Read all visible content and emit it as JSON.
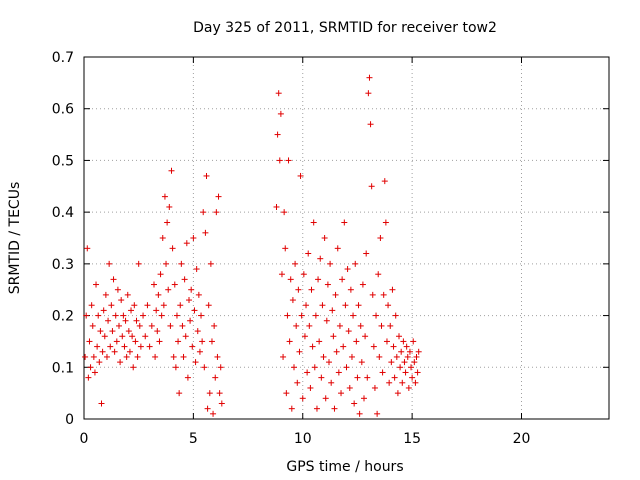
{
  "chart_data": {
    "type": "scatter",
    "title": "Day 325 of 2011, SRMTID for receiver tow2",
    "xlabel": "GPS time / hours",
    "ylabel": "SRMTID / TECUs",
    "xlim": [
      0,
      24
    ],
    "ylim": [
      0,
      0.7
    ],
    "xticks": [
      "0",
      "5",
      "10",
      "15",
      "20"
    ],
    "yticks": [
      "0",
      "0.1",
      "0.2",
      "0.3",
      "0.4",
      "0.5",
      "0.6",
      "0.7"
    ],
    "grid": true,
    "marker": "+",
    "color": "#e00000",
    "series": [
      {
        "name": "tow2",
        "points": [
          [
            0.05,
            0.12
          ],
          [
            0.1,
            0.2
          ],
          [
            0.15,
            0.33
          ],
          [
            0.2,
            0.08
          ],
          [
            0.25,
            0.15
          ],
          [
            0.3,
            0.1
          ],
          [
            0.35,
            0.22
          ],
          [
            0.4,
            0.18
          ],
          [
            0.45,
            0.12
          ],
          [
            0.5,
            0.09
          ],
          [
            0.55,
            0.26
          ],
          [
            0.6,
            0.14
          ],
          [
            0.65,
            0.2
          ],
          [
            0.7,
            0.11
          ],
          [
            0.75,
            0.17
          ],
          [
            0.8,
            0.03
          ],
          [
            0.85,
            0.13
          ],
          [
            0.9,
            0.21
          ],
          [
            0.95,
            0.16
          ],
          [
            1.0,
            0.24
          ],
          [
            1.05,
            0.12
          ],
          [
            1.1,
            0.19
          ],
          [
            1.15,
            0.3
          ],
          [
            1.2,
            0.14
          ],
          [
            1.25,
            0.22
          ],
          [
            1.3,
            0.17
          ],
          [
            1.35,
            0.27
          ],
          [
            1.4,
            0.13
          ],
          [
            1.45,
            0.2
          ],
          [
            1.5,
            0.15
          ],
          [
            1.55,
            0.25
          ],
          [
            1.6,
            0.18
          ],
          [
            1.65,
            0.11
          ],
          [
            1.7,
            0.23
          ],
          [
            1.75,
            0.16
          ],
          [
            1.8,
            0.2
          ],
          [
            1.85,
            0.14
          ],
          [
            1.9,
            0.19
          ],
          [
            1.95,
            0.12
          ],
          [
            2.0,
            0.24
          ],
          [
            2.05,
            0.17
          ],
          [
            2.1,
            0.13
          ],
          [
            2.15,
            0.21
          ],
          [
            2.2,
            0.16
          ],
          [
            2.25,
            0.1
          ],
          [
            2.3,
            0.22
          ],
          [
            2.35,
            0.15
          ],
          [
            2.4,
            0.19
          ],
          [
            2.45,
            0.12
          ],
          [
            2.5,
            0.3
          ],
          [
            2.55,
            0.18
          ],
          [
            2.6,
            0.14
          ],
          [
            2.7,
            0.2
          ],
          [
            2.8,
            0.16
          ],
          [
            2.9,
            0.22
          ],
          [
            3.0,
            0.14
          ],
          [
            3.1,
            0.18
          ],
          [
            3.2,
            0.26
          ],
          [
            3.25,
            0.12
          ],
          [
            3.3,
            0.21
          ],
          [
            3.35,
            0.17
          ],
          [
            3.4,
            0.24
          ],
          [
            3.45,
            0.15
          ],
          [
            3.5,
            0.28
          ],
          [
            3.55,
            0.2
          ],
          [
            3.6,
            0.35
          ],
          [
            3.65,
            0.22
          ],
          [
            3.7,
            0.43
          ],
          [
            3.75,
            0.3
          ],
          [
            3.8,
            0.38
          ],
          [
            3.85,
            0.25
          ],
          [
            3.9,
            0.41
          ],
          [
            3.95,
            0.18
          ],
          [
            4.0,
            0.48
          ],
          [
            4.05,
            0.33
          ],
          [
            4.1,
            0.12
          ],
          [
            4.15,
            0.26
          ],
          [
            4.2,
            0.1
          ],
          [
            4.25,
            0.2
          ],
          [
            4.3,
            0.15
          ],
          [
            4.35,
            0.05
          ],
          [
            4.4,
            0.22
          ],
          [
            4.45,
            0.3
          ],
          [
            4.5,
            0.18
          ],
          [
            4.55,
            0.12
          ],
          [
            4.6,
            0.27
          ],
          [
            4.65,
            0.16
          ],
          [
            4.7,
            0.34
          ],
          [
            4.75,
            0.08
          ],
          [
            4.8,
            0.23
          ],
          [
            4.85,
            0.19
          ],
          [
            4.9,
            0.25
          ],
          [
            4.95,
            0.14
          ],
          [
            5.0,
            0.35
          ],
          [
            5.05,
            0.21
          ],
          [
            5.1,
            0.11
          ],
          [
            5.15,
            0.29
          ],
          [
            5.2,
            0.17
          ],
          [
            5.25,
            0.24
          ],
          [
            5.3,
            0.13
          ],
          [
            5.35,
            0.2
          ],
          [
            5.4,
            0.15
          ],
          [
            5.45,
            0.4
          ],
          [
            5.5,
            0.1
          ],
          [
            5.55,
            0.36
          ],
          [
            5.6,
            0.47
          ],
          [
            5.65,
            0.02
          ],
          [
            5.7,
            0.22
          ],
          [
            5.75,
            0.05
          ],
          [
            5.8,
            0.3
          ],
          [
            5.85,
            0.15
          ],
          [
            5.9,
            0.01
          ],
          [
            5.95,
            0.18
          ],
          [
            6.0,
            0.08
          ],
          [
            6.05,
            0.4
          ],
          [
            6.1,
            0.12
          ],
          [
            6.15,
            0.43
          ],
          [
            6.2,
            0.05
          ],
          [
            6.25,
            0.1
          ],
          [
            6.3,
            0.03
          ],
          [
            8.8,
            0.41
          ],
          [
            8.85,
            0.55
          ],
          [
            8.9,
            0.63
          ],
          [
            8.95,
            0.5
          ],
          [
            9.0,
            0.59
          ],
          [
            9.05,
            0.28
          ],
          [
            9.1,
            0.12
          ],
          [
            9.15,
            0.4
          ],
          [
            9.2,
            0.33
          ],
          [
            9.25,
            0.05
          ],
          [
            9.3,
            0.2
          ],
          [
            9.35,
            0.5
          ],
          [
            9.4,
            0.15
          ],
          [
            9.45,
            0.27
          ],
          [
            9.5,
            0.02
          ],
          [
            9.55,
            0.23
          ],
          [
            9.6,
            0.1
          ],
          [
            9.65,
            0.3
          ],
          [
            9.7,
            0.18
          ],
          [
            9.75,
            0.07
          ],
          [
            9.8,
            0.25
          ],
          [
            9.85,
            0.13
          ],
          [
            9.9,
            0.47
          ],
          [
            9.95,
            0.2
          ],
          [
            10.0,
            0.04
          ],
          [
            10.05,
            0.28
          ],
          [
            10.1,
            0.16
          ],
          [
            10.15,
            0.22
          ],
          [
            10.2,
            0.09
          ],
          [
            10.25,
            0.32
          ],
          [
            10.3,
            0.18
          ],
          [
            10.35,
            0.06
          ],
          [
            10.4,
            0.25
          ],
          [
            10.45,
            0.14
          ],
          [
            10.5,
            0.38
          ],
          [
            10.55,
            0.1
          ],
          [
            10.6,
            0.2
          ],
          [
            10.65,
            0.02
          ],
          [
            10.7,
            0.27
          ],
          [
            10.75,
            0.15
          ],
          [
            10.8,
            0.31
          ],
          [
            10.85,
            0.08
          ],
          [
            10.9,
            0.22
          ],
          [
            10.95,
            0.12
          ],
          [
            11.0,
            0.35
          ],
          [
            11.05,
            0.04
          ],
          [
            11.1,
            0.19
          ],
          [
            11.15,
            0.26
          ],
          [
            11.2,
            0.11
          ],
          [
            11.25,
            0.3
          ],
          [
            11.3,
            0.07
          ],
          [
            11.35,
            0.21
          ],
          [
            11.4,
            0.16
          ],
          [
            11.45,
            0.02
          ],
          [
            11.5,
            0.24
          ],
          [
            11.55,
            0.13
          ],
          [
            11.6,
            0.33
          ],
          [
            11.65,
            0.09
          ],
          [
            11.7,
            0.18
          ],
          [
            11.75,
            0.05
          ],
          [
            11.8,
            0.27
          ],
          [
            11.85,
            0.14
          ],
          [
            11.9,
            0.38
          ],
          [
            11.95,
            0.22
          ],
          [
            12.0,
            0.1
          ],
          [
            12.05,
            0.29
          ],
          [
            12.1,
            0.17
          ],
          [
            12.15,
            0.06
          ],
          [
            12.2,
            0.25
          ],
          [
            12.25,
            0.12
          ],
          [
            12.3,
            0.2
          ],
          [
            12.35,
            0.03
          ],
          [
            12.4,
            0.3
          ],
          [
            12.45,
            0.15
          ],
          [
            12.5,
            0.08
          ],
          [
            12.55,
            0.22
          ],
          [
            12.6,
            0.01
          ],
          [
            12.65,
            0.18
          ],
          [
            12.7,
            0.11
          ],
          [
            12.75,
            0.26
          ],
          [
            12.8,
            0.04
          ],
          [
            12.85,
            0.16
          ],
          [
            12.9,
            0.32
          ],
          [
            12.95,
            0.08
          ],
          [
            13.0,
            0.63
          ],
          [
            13.05,
            0.66
          ],
          [
            13.1,
            0.57
          ],
          [
            13.15,
            0.45
          ],
          [
            13.2,
            0.24
          ],
          [
            13.25,
            0.14
          ],
          [
            13.3,
            0.06
          ],
          [
            13.35,
            0.2
          ],
          [
            13.4,
            0.01
          ],
          [
            13.45,
            0.28
          ],
          [
            13.5,
            0.12
          ],
          [
            13.55,
            0.35
          ],
          [
            13.6,
            0.18
          ],
          [
            13.65,
            0.09
          ],
          [
            13.7,
            0.24
          ],
          [
            13.75,
            0.46
          ],
          [
            13.8,
            0.38
          ],
          [
            13.85,
            0.15
          ],
          [
            13.9,
            0.22
          ],
          [
            13.95,
            0.07
          ],
          [
            14.0,
            0.18
          ],
          [
            14.05,
            0.11
          ],
          [
            14.1,
            0.25
          ],
          [
            14.15,
            0.14
          ],
          [
            14.2,
            0.08
          ],
          [
            14.25,
            0.2
          ],
          [
            14.3,
            0.12
          ],
          [
            14.35,
            0.05
          ],
          [
            14.4,
            0.16
          ],
          [
            14.45,
            0.1
          ],
          [
            14.5,
            0.13
          ],
          [
            14.55,
            0.07
          ],
          [
            14.6,
            0.15
          ],
          [
            14.65,
            0.11
          ],
          [
            14.7,
            0.09
          ],
          [
            14.75,
            0.14
          ],
          [
            14.8,
            0.12
          ],
          [
            14.85,
            0.06
          ],
          [
            14.9,
            0.13
          ],
          [
            14.95,
            0.1
          ],
          [
            15.0,
            0.08
          ],
          [
            15.05,
            0.15
          ],
          [
            15.1,
            0.11
          ],
          [
            15.15,
            0.07
          ],
          [
            15.2,
            0.12
          ],
          [
            15.25,
            0.09
          ],
          [
            15.3,
            0.13
          ]
        ]
      }
    ]
  }
}
